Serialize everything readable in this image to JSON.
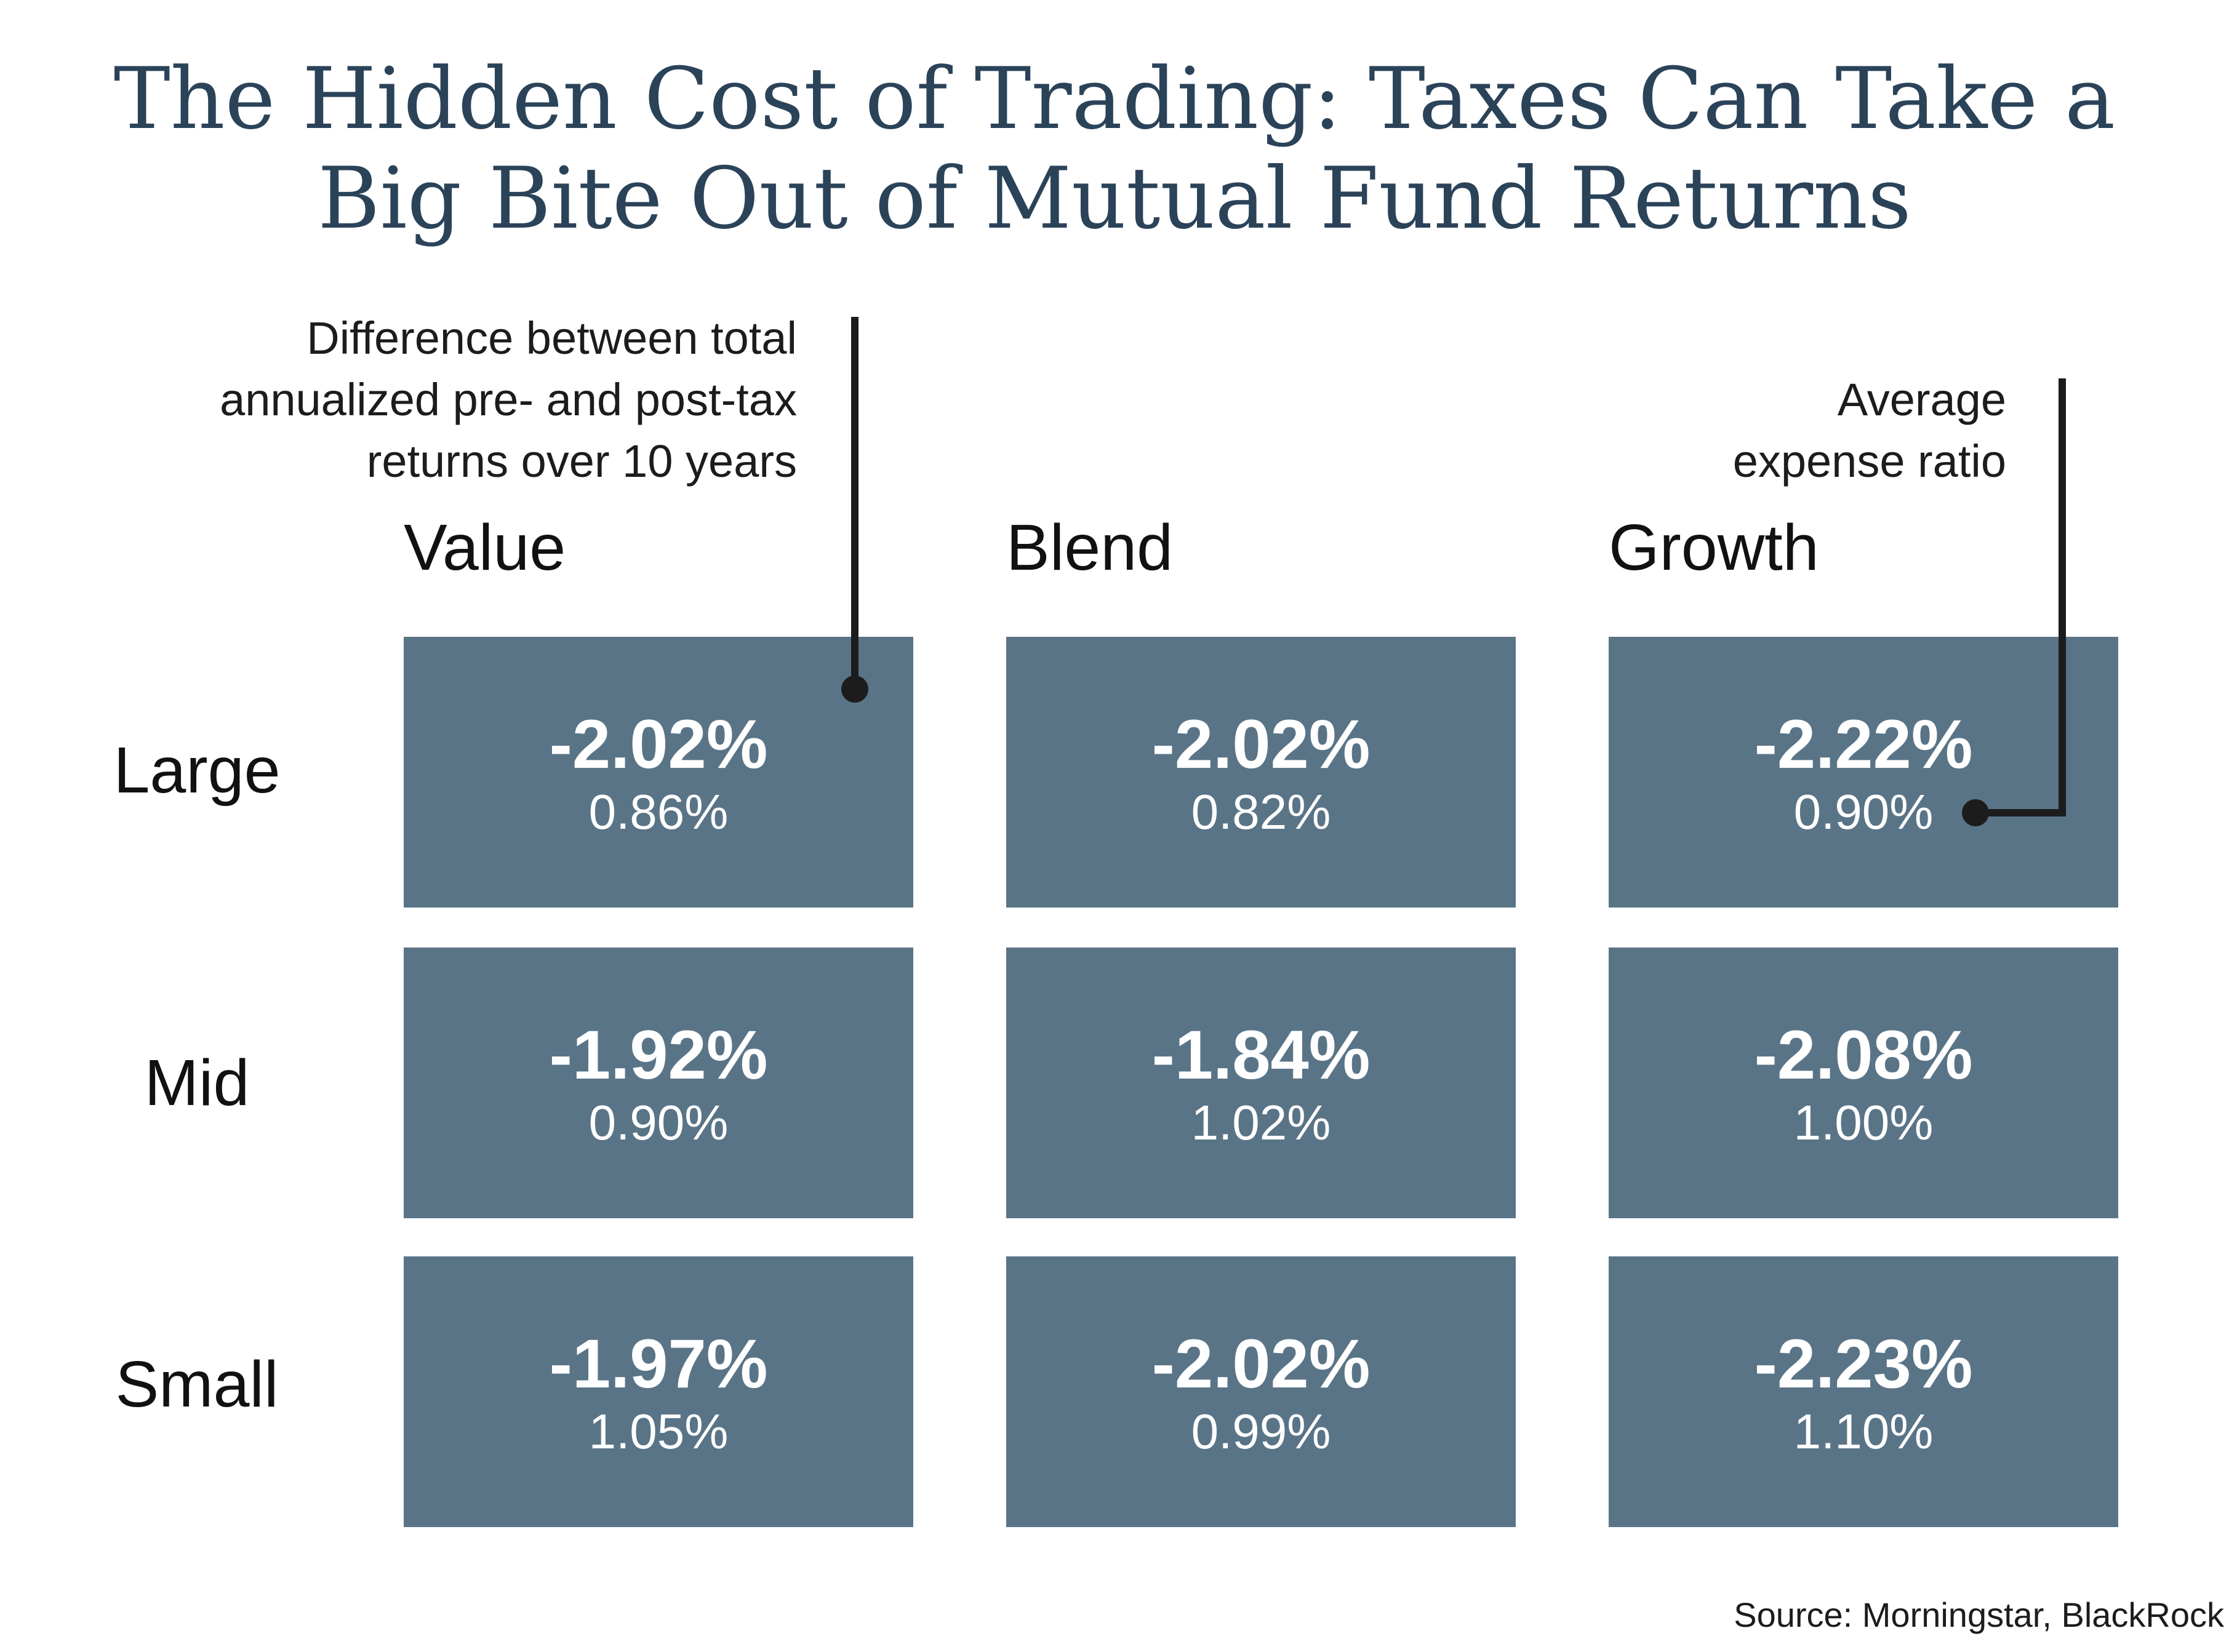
{
  "title": {
    "line1": "The Hidden Cost of Trading: Taxes Can Take a",
    "line2": "Big Bite Out of Mutual Fund Returns"
  },
  "annotations": {
    "tax_diff": {
      "line1": "Difference between total",
      "line2": "annualized pre- and post-tax",
      "line3": "returns over 10 years"
    },
    "expense": {
      "line1": "Average",
      "line2": "expense ratio"
    }
  },
  "chart_data": {
    "type": "table",
    "columns": [
      "Value",
      "Blend",
      "Growth"
    ],
    "rows": [
      "Large",
      "Mid",
      "Small"
    ],
    "series": [
      {
        "name": "Difference between total annualized pre- and post-tax returns over 10 years",
        "values": [
          [
            "-2.02%",
            "-2.02%",
            "-2.22%"
          ],
          [
            "-1.92%",
            "-1.84%",
            "-2.08%"
          ],
          [
            "-1.97%",
            "-2.02%",
            "-2.23%"
          ]
        ]
      },
      {
        "name": "Average expense ratio",
        "values": [
          [
            "0.86%",
            "0.82%",
            "0.90%"
          ],
          [
            "0.90%",
            "1.02%",
            "1.00%"
          ],
          [
            "1.05%",
            "0.99%",
            "1.10%"
          ]
        ]
      }
    ],
    "colors": {
      "cell": "#5a7487",
      "title": "#2b4359",
      "text": "#111111"
    }
  },
  "source": "Source: Morningstar, BlackRock"
}
